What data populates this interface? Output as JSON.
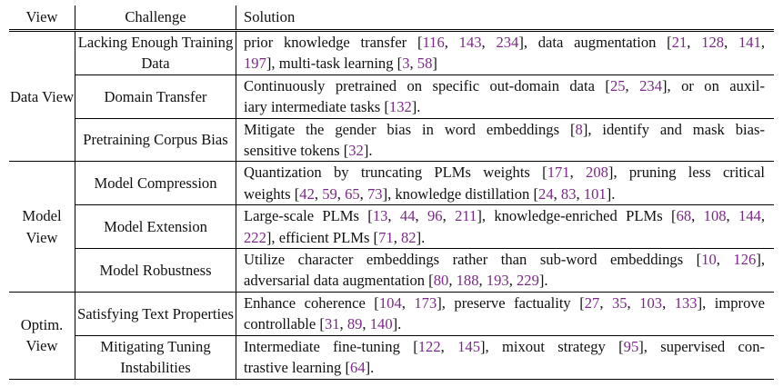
{
  "headers": {
    "view": "View",
    "challenge": "Challenge",
    "solution": "Solution"
  },
  "colors": {
    "citation": "#7a2a86",
    "text": "#111111",
    "rules": "#000000"
  },
  "groups": [
    {
      "view": "Data View",
      "rows": [
        {
          "challenge": "Lacking Enough Training Data",
          "solution": [
            [
              "prior knowledge transfer [",
              {
                "ref": "116"
              },
              ", ",
              {
                "ref": "143"
              },
              ", ",
              {
                "ref": "234"
              },
              "], data augmentation [",
              {
                "ref": "21"
              },
              ", ",
              {
                "ref": "128"
              },
              ", ",
              {
                "ref": "141"
              },
              ","
            ],
            [
              {
                "ref": "197"
              },
              "], multi-task learning [",
              {
                "ref": "3"
              },
              ", ",
              {
                "ref": "58"
              },
              "]"
            ]
          ]
        },
        {
          "challenge": "Domain Transfer",
          "solution": [
            [
              "Continuously pretrained on specific out-domain data [",
              {
                "ref": "25"
              },
              ", ",
              {
                "ref": "234"
              },
              "], or on auxil-"
            ],
            [
              "iary intermediate tasks [",
              {
                "ref": "132"
              },
              "]."
            ]
          ]
        },
        {
          "challenge": "Pretraining Corpus Bias",
          "solution": [
            [
              "Mitigate the gender bias in word embeddings [",
              {
                "ref": "8"
              },
              "], identify and mask bias-"
            ],
            [
              "sensitive tokens [",
              {
                "ref": "32"
              },
              "]."
            ]
          ]
        }
      ]
    },
    {
      "view": "Model View",
      "rows": [
        {
          "challenge": "Model Compression",
          "solution": [
            [
              "Quantization by truncating PLMs weights [",
              {
                "ref": "171"
              },
              ", ",
              {
                "ref": "208"
              },
              "], pruning less critical"
            ],
            [
              "weights [",
              {
                "ref": "42"
              },
              ", ",
              {
                "ref": "59"
              },
              ", ",
              {
                "ref": "65"
              },
              ", ",
              {
                "ref": "73"
              },
              "], knowledge distillation [",
              {
                "ref": "24"
              },
              ", ",
              {
                "ref": "83"
              },
              ", ",
              {
                "ref": "101"
              },
              "]."
            ]
          ]
        },
        {
          "challenge": "Model Extension",
          "solution": [
            [
              "Large-scale PLMs [",
              {
                "ref": "13"
              },
              ", ",
              {
                "ref": "44"
              },
              ", ",
              {
                "ref": "96"
              },
              ", ",
              {
                "ref": "211"
              },
              "], knowledge-enriched PLMs [",
              {
                "ref": "68"
              },
              ", ",
              {
                "ref": "108"
              },
              ", ",
              {
                "ref": "144"
              },
              ","
            ],
            [
              {
                "ref": "222"
              },
              "], efficient PLMs [",
              {
                "ref": "71"
              },
              ", ",
              {
                "ref": "82"
              },
              "]."
            ]
          ]
        },
        {
          "challenge": "Model Robustness",
          "solution": [
            [
              "Utilize character embeddings rather than sub-word embeddings [",
              {
                "ref": "10"
              },
              ", ",
              {
                "ref": "126"
              },
              "],"
            ],
            [
              "adversarial data augmentation [",
              {
                "ref": "80"
              },
              ", ",
              {
                "ref": "188"
              },
              ", ",
              {
                "ref": "193"
              },
              ", ",
              {
                "ref": "229"
              },
              "]."
            ]
          ]
        }
      ]
    },
    {
      "view": "Optim. View",
      "rows": [
        {
          "challenge": "Satisfying Text Properties",
          "solution": [
            [
              "Enhance coherence [",
              {
                "ref": "104"
              },
              ", ",
              {
                "ref": "173"
              },
              "], preserve factuality [",
              {
                "ref": "27"
              },
              ", ",
              {
                "ref": "35"
              },
              ", ",
              {
                "ref": "103"
              },
              ", ",
              {
                "ref": "133"
              },
              "], improve"
            ],
            [
              "controllable [",
              {
                "ref": "31"
              },
              ", ",
              {
                "ref": "89"
              },
              ", ",
              {
                "ref": "140"
              },
              "]."
            ]
          ]
        },
        {
          "challenge": "Mitigating Tuning Instabilities",
          "solution": [
            [
              "Intermediate fine-tuning [",
              {
                "ref": "122"
              },
              ", ",
              {
                "ref": "145"
              },
              "], mixout strategy [",
              {
                "ref": "95"
              },
              "], supervised con-"
            ],
            [
              "trastive learning [",
              {
                "ref": "64"
              },
              "]."
            ]
          ]
        }
      ]
    }
  ]
}
